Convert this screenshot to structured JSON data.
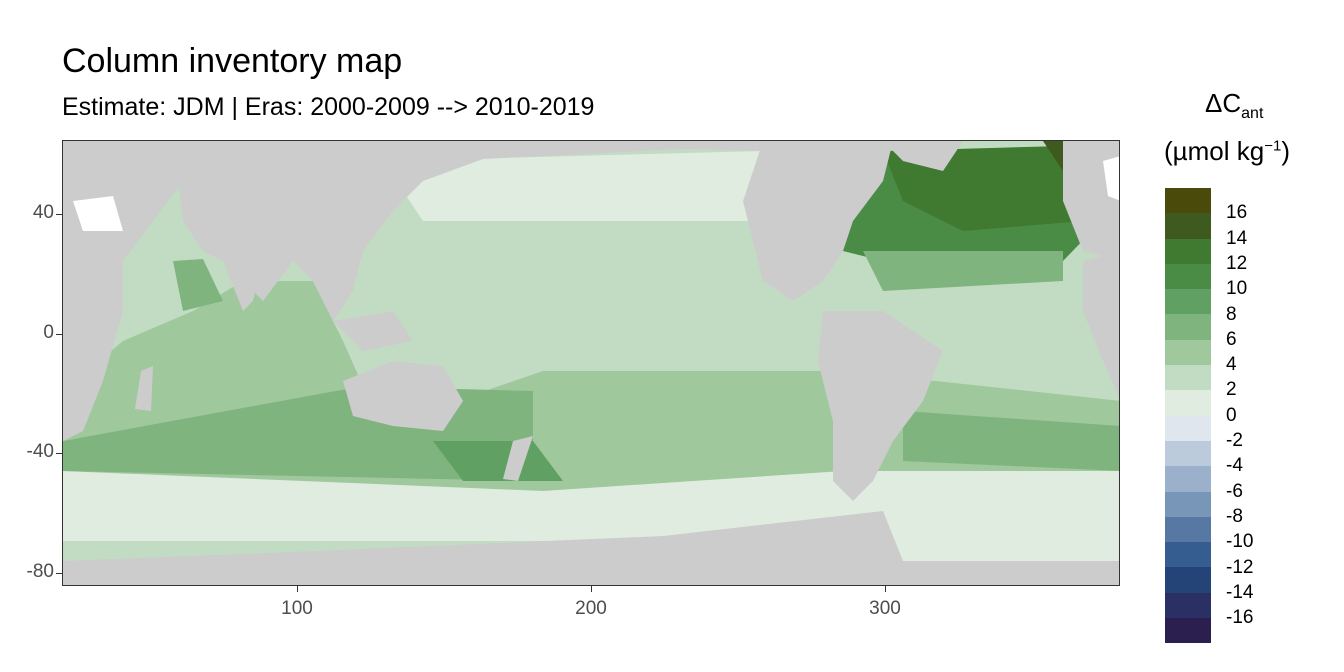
{
  "title": "Column inventory map",
  "subtitle": "Estimate: JDM  | Eras: 2000-2009 --> 2010-2019",
  "legend": {
    "title_main": "ΔC",
    "title_sub": "ant",
    "unit_main": "(µmol kg",
    "unit_sup": "−1",
    "unit_close": ")",
    "labels": [
      "16",
      "14",
      "12",
      "10",
      "8",
      "6",
      "4",
      "2",
      "0",
      "-2",
      "-4",
      "-6",
      "-8",
      "-10",
      "-12",
      "-14",
      "-16"
    ],
    "colors": [
      "#4a4a0a",
      "#3f5a1f",
      "#3f7a30",
      "#4a8c45",
      "#60a062",
      "#80b47e",
      "#9fc89d",
      "#c2dcc3",
      "#e1ece1",
      "#dfe6ee",
      "#bccbdc",
      "#9ab0cb",
      "#7896b8",
      "#5678a3",
      "#355d8f",
      "#244478",
      "#2a2f64",
      "#2b1f4f"
    ]
  },
  "map_data": {
    "xlim": [
      20,
      380
    ],
    "ylim": [
      -85,
      65
    ],
    "x_ticks": [
      "100",
      "200",
      "300"
    ],
    "y_ticks": [
      "40",
      "0",
      "-40",
      "-80"
    ],
    "land_color": "#cccccc",
    "missing_color": "#ffffff"
  }
}
